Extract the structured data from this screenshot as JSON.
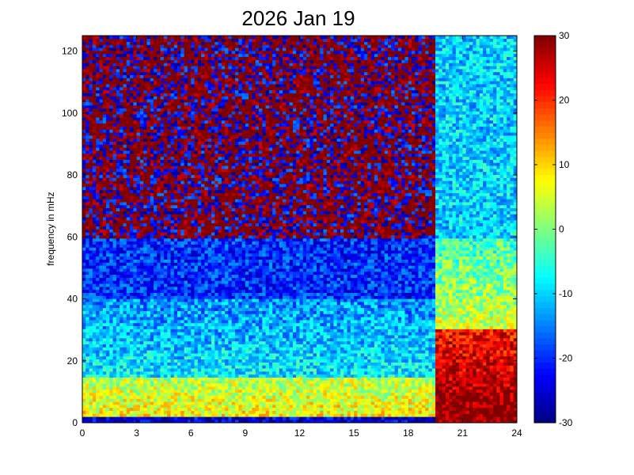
{
  "chart_data": {
    "type": "heatmap",
    "title": "2026 Jan 19",
    "xlabel": "",
    "ylabel": "frequency in mHz",
    "xlim": [
      0,
      24
    ],
    "ylim": [
      0,
      125
    ],
    "x_ticks": [
      "0",
      "3",
      "6",
      "9",
      "12",
      "15",
      "18",
      "21",
      "24"
    ],
    "y_ticks": [
      "0",
      "20",
      "40",
      "60",
      "80",
      "100",
      "120"
    ],
    "colorbar": {
      "colormap": "jet",
      "range": [
        -30,
        30
      ],
      "ticks": [
        "-30",
        "-20",
        "-10",
        "0",
        "10",
        "20",
        "30"
      ]
    },
    "layout_notes": {
      "grid": false,
      "colorbar_position": "right"
    },
    "regions": [
      {
        "x_range": [
          0,
          19.5
        ],
        "y_range": [
          60,
          125
        ],
        "value_approx": 30,
        "mixed_with": -22
      },
      {
        "x_range": [
          0,
          19.5
        ],
        "y_range": [
          40,
          60
        ],
        "value_approx": -20
      },
      {
        "x_range": [
          0,
          19.5
        ],
        "y_range": [
          15,
          40
        ],
        "value_approx": -10
      },
      {
        "x_range": [
          0,
          19.5
        ],
        "y_range": [
          2,
          15
        ],
        "value_approx": 8
      },
      {
        "x_range": [
          19.5,
          24
        ],
        "y_range": [
          60,
          125
        ],
        "value_approx": -10
      },
      {
        "x_range": [
          19.5,
          24
        ],
        "y_range": [
          30,
          60
        ],
        "value_approx": 5
      },
      {
        "x_range": [
          19.5,
          24
        ],
        "y_range": [
          2,
          30
        ],
        "value_approx": 25
      }
    ]
  }
}
